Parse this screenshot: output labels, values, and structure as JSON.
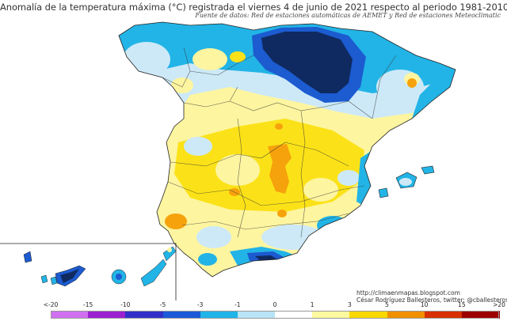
{
  "title": "Anomalía de la temperatura máxima (°C) registrada el viernes 4 de junio de 2021 respecto al periodo 1981-2010",
  "subtitle": "Fuente de datos: Red de estaciones automáticas de AEMET y Red de estaciones Meteoclimatic",
  "credits": {
    "website": "http://climaenmapas.blogspot.com",
    "author": "César Rodríguez Ballesteros, twitter: @cballesteros"
  },
  "legend": {
    "labels": [
      "<-20",
      "-15",
      "-10",
      "-5",
      "-3",
      "-1",
      "0",
      "1",
      "3",
      "5",
      "10",
      "15",
      ">20"
    ],
    "colors": [
      "#d070f0",
      "#9a20d0",
      "#3030c8",
      "#1a5ad8",
      "#20b4e8",
      "#b8e4f8",
      "#ffffff",
      "#fdf9a0",
      "#fbd800",
      "#f09000",
      "#d83000",
      "#9c0000",
      "#6e3a10"
    ]
  },
  "palette": {
    "deep_negative": "#0f2a60",
    "strong_negative": "#1c5bd0",
    "negative": "#22b4e6",
    "slight_negative": "#cde9f8",
    "neutral": "#ffffff",
    "slight_positive": "#fdf5a0",
    "positive": "#fbe218",
    "strong_positive": "#f6a20c"
  }
}
